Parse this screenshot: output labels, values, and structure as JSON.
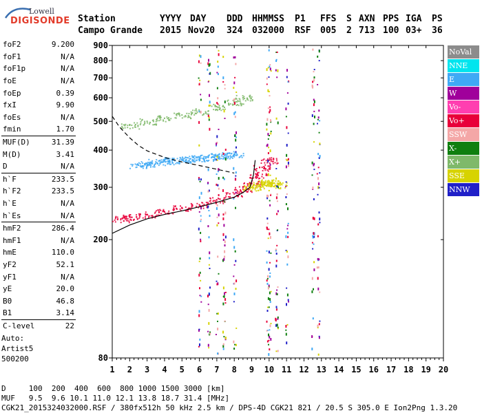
{
  "logo": {
    "line1": "Lowell",
    "line2": "DIGISONDE"
  },
  "header": {
    "labels": [
      "Station",
      "YYYY",
      "DAY",
      "DDD",
      "HHMMSS",
      "P1",
      "FFS",
      "S",
      "AXN",
      "PPS",
      "IGA",
      "PS"
    ],
    "values": [
      "Campo Grande",
      "2015",
      "Nov20",
      "324",
      "032000",
      "RSF",
      "005",
      "2",
      "713",
      "100",
      "03+",
      "36"
    ]
  },
  "params_group1": [
    {
      "name": "foF2",
      "value": "9.200"
    },
    {
      "name": "foF1",
      "value": "N/A"
    },
    {
      "name": "foF1p",
      "value": "N/A"
    },
    {
      "name": "foE",
      "value": "N/A"
    },
    {
      "name": "foEp",
      "value": "0.39"
    },
    {
      "name": "fxI",
      "value": "9.90"
    },
    {
      "name": "foEs",
      "value": "N/A"
    },
    {
      "name": "fmin",
      "value": "1.70"
    }
  ],
  "params_group2": [
    {
      "name": "MUF(D)",
      "value": "31.39"
    },
    {
      "name": "M(D)",
      "value": "3.41"
    },
    {
      "name": "D",
      "value": "N/A"
    }
  ],
  "params_group3": [
    {
      "name": "h`F",
      "value": "233.5"
    },
    {
      "name": "h`F2",
      "value": "233.5"
    },
    {
      "name": "h`E",
      "value": "N/A"
    },
    {
      "name": "h`Es",
      "value": "N/A"
    }
  ],
  "params_group4": [
    {
      "name": "hmF2",
      "value": "286.4"
    },
    {
      "name": "hmF1",
      "value": "N/A"
    },
    {
      "name": "hmE",
      "value": "110.0"
    },
    {
      "name": "yF2",
      "value": "52.1"
    },
    {
      "name": "yF1",
      "value": "N/A"
    },
    {
      "name": "yE",
      "value": "20.0"
    },
    {
      "name": "B0",
      "value": "46.8"
    },
    {
      "name": "B1",
      "value": "3.14"
    }
  ],
  "params_group5": [
    {
      "name": "C-level",
      "value": "22"
    }
  ],
  "auto": {
    "line1": "Auto:",
    "line2": "Artist5",
    "line3": "500200"
  },
  "legend": [
    {
      "label": "NoVal",
      "color": "#8c8c8c"
    },
    {
      "label": "NNE",
      "color": "#00e5ee"
    },
    {
      "label": "E",
      "color": "#3fa9f5"
    },
    {
      "label": "W",
      "color": "#a0009b"
    },
    {
      "label": "Vo-",
      "color": "#ff3fb0"
    },
    {
      "label": "Vo+",
      "color": "#e8003a"
    },
    {
      "label": "SSW",
      "color": "#f4a7a7"
    },
    {
      "label": "X-",
      "color": "#0f7f0f"
    },
    {
      "label": "X+",
      "color": "#7fb96a"
    },
    {
      "label": "SSE",
      "color": "#d7d300"
    },
    {
      "label": "NNW",
      "color": "#2020c8"
    }
  ],
  "footer": {
    "line1": "D     100  200  400  600  800 1000 1500 3000 [km]",
    "line2": "MUF   9.5  9.6 10.1 11.0 12.1 13.8 18.7 31.4 [MHz]",
    "line3": "CGK21_2015324032000.RSF / 380fx512h 50 kHz 2.5 km / DPS-4D CGK21 821 / 20.5 S 305.0 E Ion2Png 1.3.20"
  },
  "chart_data": {
    "type": "scatter",
    "x_ticks": [
      1,
      2,
      3,
      4,
      5,
      6,
      7,
      8,
      9,
      10,
      11,
      12,
      13,
      14,
      15,
      16,
      17,
      18,
      19,
      20
    ],
    "y_ticks": [
      80,
      200,
      300,
      400,
      500,
      600,
      700,
      800,
      900
    ],
    "xlim": [
      1,
      20
    ],
    "ylim": [
      80,
      900
    ],
    "y_scale": "log",
    "series": [
      {
        "name": "E",
        "color": "#3fa9f5",
        "x": [
          2.5,
          3.0,
          3.5,
          4.0,
          4.5,
          5.0,
          5.5,
          6.0,
          6.5,
          7.0,
          7.5,
          8.0
        ],
        "y": [
          356,
          360,
          365,
          368,
          370,
          372,
          374,
          376,
          378,
          382,
          385,
          388
        ]
      },
      {
        "name": "Vo+",
        "color": "#e8003a",
        "x": [
          1.5,
          2.0,
          3.0,
          4.0,
          5.0,
          6.0,
          7.0,
          8.0,
          8.5,
          9.0,
          9.3,
          9.6,
          10.0
        ],
        "y": [
          235,
          238,
          243,
          248,
          255,
          262,
          272,
          285,
          296,
          310,
          330,
          350,
          370
        ]
      },
      {
        "name": "X+",
        "color": "#7fb96a",
        "x": [
          2.0,
          3.0,
          4.0,
          5.0,
          6.0,
          7.0,
          8.0,
          8.5
        ],
        "y": [
          485,
          500,
          512,
          525,
          540,
          560,
          580,
          600
        ]
      },
      {
        "name": "SSE",
        "color": "#d7d300",
        "x": [
          9.0,
          9.3,
          9.6,
          9.9,
          10.2,
          10.5
        ],
        "y": [
          300,
          305,
          310,
          312,
          310,
          305
        ]
      }
    ],
    "profile_curve": {
      "x": [
        1.0,
        2.0,
        3.0,
        4.0,
        5.0,
        6.0,
        7.0,
        8.0,
        8.5,
        8.9,
        9.1,
        9.2
      ],
      "y": [
        210,
        224,
        235,
        243,
        250,
        258,
        267,
        278,
        288,
        300,
        330,
        370
      ]
    },
    "dashed_curve": {
      "x": [
        1.0,
        1.4,
        2.0,
        2.5,
        3.0,
        4.0,
        5.0,
        6.0,
        7.0,
        8.0
      ],
      "y": [
        520,
        480,
        440,
        415,
        398,
        378,
        365,
        355,
        345,
        335
      ]
    }
  }
}
